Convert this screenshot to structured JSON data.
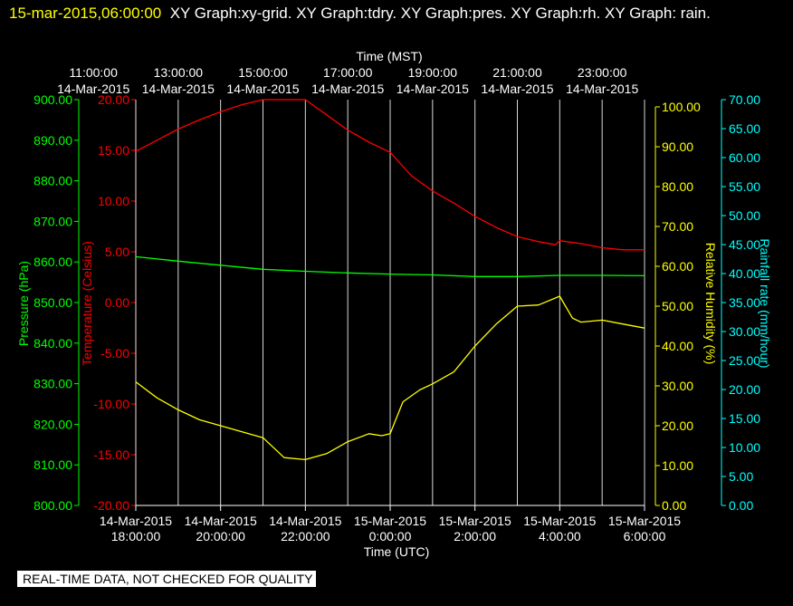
{
  "header": {
    "timestamp": "15-mar-2015,06:00:00",
    "titles": "XY Graph:xy-grid.  XY Graph:tdry.  XY Graph:pres.  XY Graph:rh.  XY Graph: rain."
  },
  "banner": "REAL-TIME DATA, NOT CHECKED FOR QUALITY",
  "colors": {
    "pressure": "#00ff00",
    "temperature": "#ff0000",
    "humidity": "#ffff00",
    "rain": "#00ffff",
    "grid": "#ffffff"
  },
  "chart_data": {
    "type": "line",
    "top_axis": {
      "title": "Time (MST)",
      "ticks": [
        {
          "time": "11:00:00",
          "date": "14-Mar-2015"
        },
        {
          "time": "13:00:00",
          "date": "14-Mar-2015"
        },
        {
          "time": "15:00:00",
          "date": "14-Mar-2015"
        },
        {
          "time": "17:00:00",
          "date": "14-Mar-2015"
        },
        {
          "time": "19:00:00",
          "date": "14-Mar-2015"
        },
        {
          "time": "21:00:00",
          "date": "14-Mar-2015"
        },
        {
          "time": "23:00:00",
          "date": "14-Mar-2015"
        }
      ]
    },
    "bottom_axis": {
      "title": "Time (UTC)",
      "ticks": [
        {
          "date": "14-Mar-2015",
          "time": "18:00:00"
        },
        {
          "date": "14-Mar-2015",
          "time": "20:00:00"
        },
        {
          "date": "14-Mar-2015",
          "time": "22:00:00"
        },
        {
          "date": "15-Mar-2015",
          "time": "0:00:00"
        },
        {
          "date": "15-Mar-2015",
          "time": "2:00:00"
        },
        {
          "date": "15-Mar-2015",
          "time": "4:00:00"
        },
        {
          "date": "15-Mar-2015",
          "time": "6:00:00"
        }
      ]
    },
    "x_hours_range": [
      0,
      12
    ],
    "axes": {
      "pressure": {
        "label": "Pressure (hPa)",
        "range": [
          800,
          900
        ],
        "ticks": [
          "800.00",
          "810.00",
          "820.00",
          "830.00",
          "840.00",
          "850.00",
          "860.00",
          "870.00",
          "880.00",
          "890.00",
          "900.00"
        ]
      },
      "temperature": {
        "label": "Temperature (Celsius)",
        "range": [
          -20,
          20
        ],
        "ticks": [
          "-20.00",
          "-15.00",
          "-10.00",
          "-5.00",
          "0.00",
          "5.00",
          "10.00",
          "15.00",
          "20.00"
        ]
      },
      "humidity": {
        "label": "Relative Humidity (%)",
        "range": [
          0,
          100
        ],
        "ticks": [
          "0.00",
          "10.00",
          "20.00",
          "30.00",
          "40.00",
          "50.00",
          "60.00",
          "70.00",
          "80.00",
          "90.00",
          "100.00"
        ]
      },
      "rain": {
        "label": "Rainfall rate (mm/hour)",
        "range": [
          0,
          70
        ],
        "ticks": [
          "0.00",
          "5.00",
          "10.00",
          "15.00",
          "20.00",
          "25.00",
          "30.00",
          "35.00",
          "40.00",
          "45.00",
          "50.00",
          "55.00",
          "60.00",
          "65.00",
          "70.00"
        ]
      }
    },
    "series": [
      {
        "key": "temperature",
        "x": [
          0,
          0.5,
          1,
          1.5,
          2,
          2.5,
          3,
          3.3,
          3.6,
          4,
          4.5,
          5,
          5.5,
          6,
          6.5,
          7,
          7.5,
          8,
          8.5,
          9,
          9.5,
          9.9,
          10,
          10.5,
          11,
          11.5,
          12
        ],
        "y": [
          14.9,
          16,
          17.1,
          18,
          18.8,
          19.5,
          20,
          20.3,
          20.5,
          20,
          18.5,
          17,
          15.8,
          14.8,
          12.5,
          11,
          9.8,
          8.5,
          7.4,
          6.5,
          6,
          5.7,
          6.1,
          5.8,
          5.4,
          5.2,
          5.2
        ]
      },
      {
        "key": "pressure",
        "x": [
          0,
          1,
          2,
          3,
          4,
          5,
          6,
          7,
          8,
          9,
          10,
          11,
          12
        ],
        "y": [
          861.3,
          860.2,
          859.2,
          858.2,
          857.7,
          857.3,
          857,
          856.8,
          856.4,
          856.4,
          856.7,
          856.7,
          856.6
        ]
      },
      {
        "key": "humidity",
        "x": [
          0,
          0.5,
          1,
          1.5,
          2,
          2.5,
          3,
          3.5,
          4,
          4.5,
          5,
          5.5,
          5.8,
          6,
          6.3,
          6.7,
          7,
          7.5,
          8,
          8.5,
          9,
          9.5,
          10,
          10.3,
          10.5,
          11,
          11.5,
          12
        ],
        "y": [
          31,
          27,
          24,
          21.5,
          20,
          18.5,
          17,
          12,
          11.5,
          13,
          16,
          18,
          17.5,
          18,
          26,
          29,
          30.5,
          33.5,
          40,
          45.5,
          50,
          50.3,
          52.5,
          47,
          46,
          46.5,
          45.5,
          44.5
        ]
      },
      {
        "key": "rain",
        "x": [],
        "y": []
      }
    ]
  }
}
